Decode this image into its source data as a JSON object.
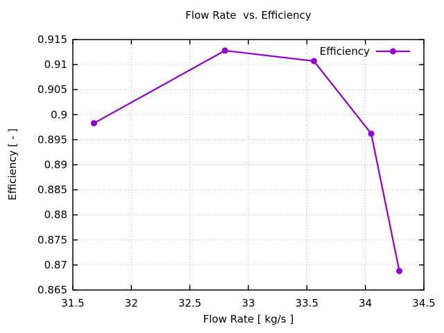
{
  "title": "Flow Rate  vs. Efficiency",
  "legend": {
    "label": "Efficiency",
    "position": "top-right-inside"
  },
  "chart_data": {
    "type": "line",
    "title": "Flow Rate  vs. Efficiency",
    "xlabel": "Flow Rate [ kg/s ]",
    "ylabel": "Efficiency [ - ]",
    "xlim": [
      31.5,
      34.5
    ],
    "ylim": [
      0.865,
      0.915
    ],
    "x_ticks": [
      31.5,
      32,
      32.5,
      33,
      33.5,
      34,
      34.5
    ],
    "x_tick_labels": [
      "31.5",
      "32",
      "32.5",
      "33",
      "33.5",
      "34",
      "34.5"
    ],
    "y_ticks": [
      0.865,
      0.87,
      0.875,
      0.88,
      0.885,
      0.89,
      0.895,
      0.9,
      0.905,
      0.91,
      0.915
    ],
    "y_tick_labels": [
      "0.865",
      "0.87",
      "0.875",
      "0.88",
      "0.885",
      "0.89",
      "0.895",
      "0.9",
      "0.905",
      "0.91",
      "0.915"
    ],
    "grid": true,
    "grid_style": "dotted",
    "legend_position": "top-right",
    "series": [
      {
        "name": "Efficiency",
        "color": "#9400d3",
        "marker": "filled-circle",
        "points": [
          {
            "x": 31.68,
            "y": 0.8983
          },
          {
            "x": 32.8,
            "y": 0.9128
          },
          {
            "x": 33.56,
            "y": 0.9107
          },
          {
            "x": 34.05,
            "y": 0.8962
          },
          {
            "x": 34.29,
            "y": 0.8688
          }
        ]
      }
    ]
  },
  "colors": {
    "background": "#ffffff",
    "frame": "#000000",
    "grid": "#b8b8b8",
    "text": "#000000",
    "series_purple": "#9400d3"
  }
}
